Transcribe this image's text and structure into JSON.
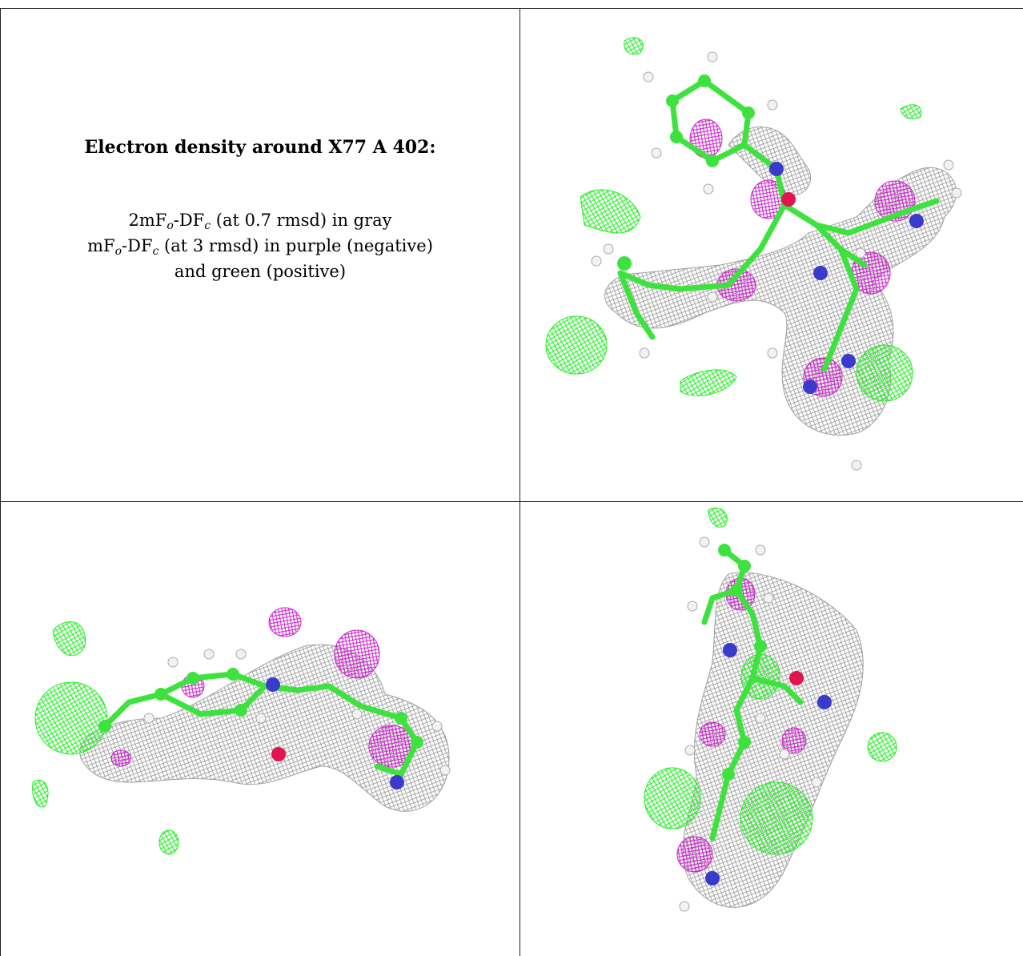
{
  "title": "Electron density around X77 A 402:",
  "legend": {
    "line1": {
      "a": "2mF",
      "sub_o": "o",
      "b": "-DF",
      "sub_c": "c",
      "rest": " (at 0.7 rmsd) in gray"
    },
    "line2": {
      "a": "mF",
      "sub_o": "o",
      "b": "-DF",
      "sub_c": "c",
      "rest": " (at 3 rmsd) in purple (negative)"
    },
    "line3": "and green (positive)"
  },
  "colors": {
    "mesh_gray": "#8f8f8f",
    "mesh_green": "#22ee22",
    "mesh_purple": "#cc22cc",
    "carbon": "#3ee23e",
    "hydrogen": "#f2f2f2",
    "nitrogen": "#3a3acc",
    "oxygen": "#e01550"
  },
  "panels": [
    "view-1",
    "view-2",
    "view-3"
  ]
}
